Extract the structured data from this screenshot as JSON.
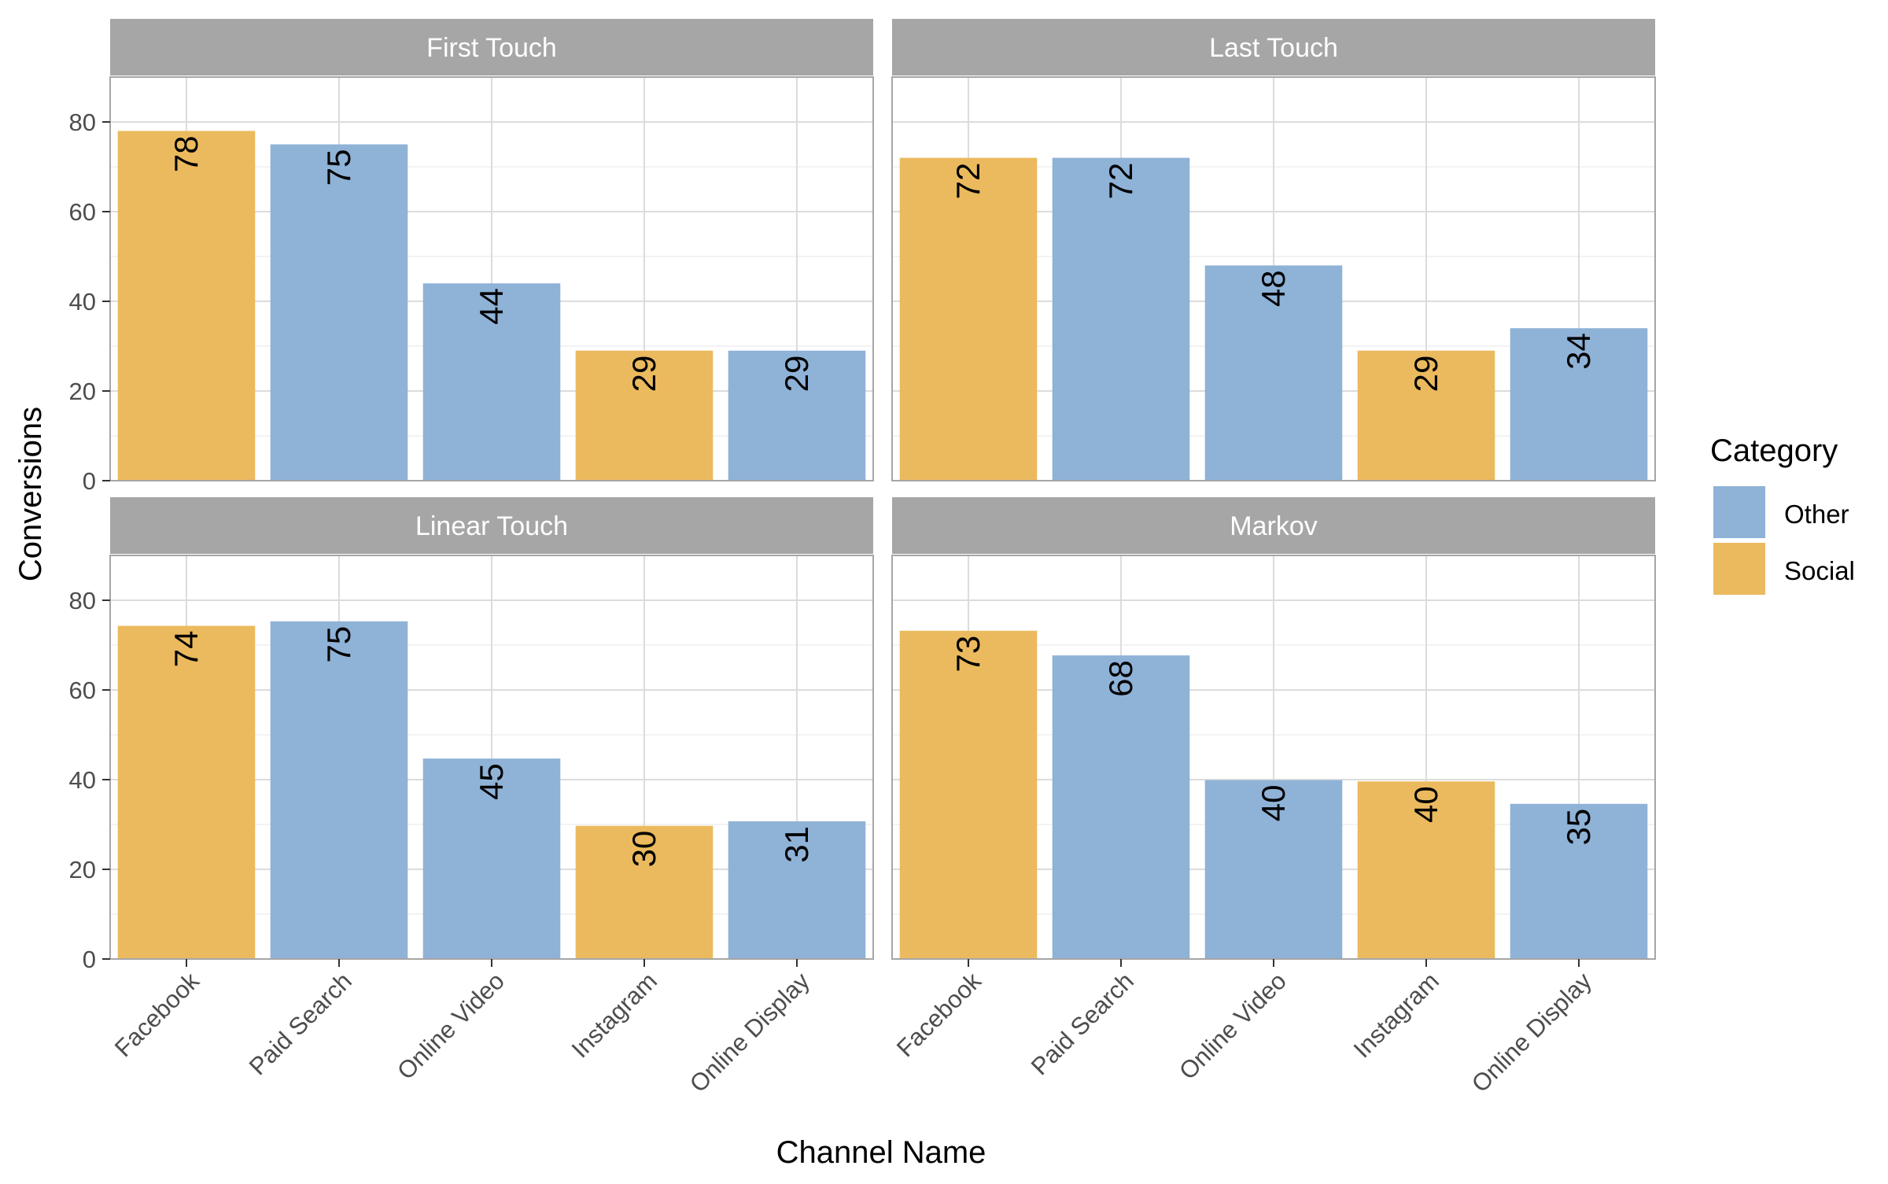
{
  "chart_data": {
    "type": "bar",
    "layout": "facet-grid-2x2",
    "xlabel": "Channel Name",
    "ylabel": "Conversions",
    "ylim": [
      0,
      90
    ],
    "yticks": [
      0,
      20,
      40,
      60,
      80
    ],
    "grid": true,
    "categories": [
      "Facebook",
      "Paid Search",
      "Online Video",
      "Instagram",
      "Online Display"
    ],
    "category_group": [
      "Social",
      "Other",
      "Other",
      "Social",
      "Other"
    ],
    "legend": {
      "title": "Category",
      "position": "right",
      "entries": [
        {
          "label": "Other",
          "color": "#8FB2D7"
        },
        {
          "label": "Social",
          "color": "#EBBA5E"
        }
      ]
    },
    "panels": [
      {
        "title": "First Touch",
        "values": [
          78,
          75,
          44,
          29,
          29
        ],
        "labels": [
          "78",
          "75",
          "44",
          "29",
          "29"
        ]
      },
      {
        "title": "Last Touch",
        "values": [
          72,
          72,
          48,
          29,
          34
        ],
        "labels": [
          "72",
          "72",
          "48",
          "29",
          "34"
        ]
      },
      {
        "title": "Linear Touch",
        "values": [
          74.3,
          75.3,
          44.7,
          29.7,
          30.7
        ],
        "labels": [
          "74",
          "75",
          "45",
          "30",
          "31"
        ]
      },
      {
        "title": "Markov",
        "values": [
          73.2,
          67.7,
          39.9,
          39.6,
          34.6
        ],
        "labels": [
          "73",
          "68",
          "40",
          "40",
          "35"
        ]
      }
    ]
  },
  "colors": {
    "Other": "#8FB2D7",
    "Social": "#EBBA5E",
    "strip": "#A6A6A6",
    "panel_border": "#A6A6A6",
    "grid_major": "#DCDCDC",
    "grid_minor": "#EFEFEF"
  }
}
